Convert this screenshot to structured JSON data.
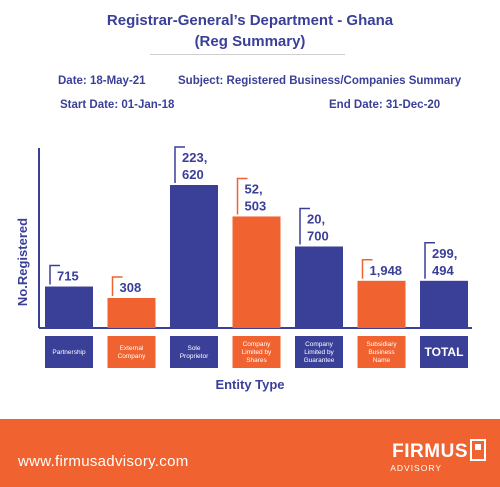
{
  "header": {
    "title_line1": "Registrar-General’s Department - Ghana",
    "title_line2": "(Reg Summary)"
  },
  "meta": {
    "date": "Date: 18-May-21",
    "subject": "Subject: Registered Business/Companies Summary",
    "start_date": "Start Date: 01-Jan-18",
    "end_date": "End Date: 31-Dec-20"
  },
  "chart_data": {
    "type": "bar",
    "categories": [
      "Partnership",
      "External Company",
      "Sole Proprietor",
      "Company Limited by Shares",
      "Company Limited by Guarantee",
      "Subsidiary Business Name",
      "TOTAL"
    ],
    "category_label_lines": [
      [
        "Partnership"
      ],
      [
        "External",
        "Company"
      ],
      [
        "Sole",
        "Proprietor"
      ],
      [
        "Company",
        "Limited by",
        "Shares"
      ],
      [
        "Company",
        "Limited by",
        "Guarantee"
      ],
      [
        "Subsidiary",
        "Business",
        "Name"
      ],
      [
        "TOTAL"
      ]
    ],
    "values": [
      715,
      308,
      223620,
      52503,
      20700,
      1948,
      299494
    ],
    "value_labels": [
      [
        "715"
      ],
      [
        "308"
      ],
      [
        "223,",
        "620"
      ],
      [
        "52,",
        "503"
      ],
      [
        "20,",
        "700"
      ],
      [
        "1,948"
      ],
      [
        "299,",
        "494"
      ]
    ],
    "ylabel": "No.Registered",
    "xlabel": "Entity Type",
    "colors": {
      "blue": "#3a3f98",
      "orange": "#f0622f"
    },
    "bar_colors": [
      "#3a3f98",
      "#f0622f",
      "#3a3f98",
      "#f0622f",
      "#3a3f98",
      "#f0622f",
      "#3a3f98"
    ],
    "bar_levels": [
      0.29,
      0.21,
      1.0,
      0.78,
      0.57,
      0.33,
      0.33
    ]
  },
  "footer": {
    "url": "www.firmusadvisory.com",
    "logo": "FIRMUS",
    "logo_sub": "ADVISORY",
    "logo_icon": "firmus-logo-icon"
  }
}
